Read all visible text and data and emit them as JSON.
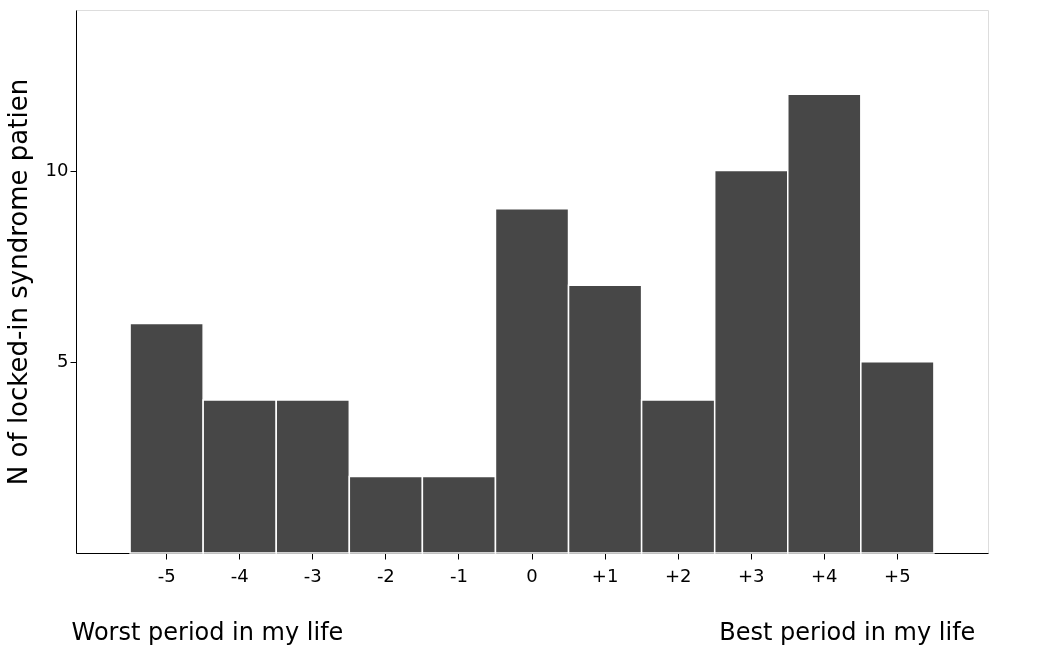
{
  "chart_data": {
    "type": "bar",
    "categories": [
      "-5",
      "-4",
      "-3",
      "-2",
      "-1",
      "0",
      "+1",
      "+2",
      "+3",
      "+4",
      "+5"
    ],
    "values": [
      6,
      4,
      4,
      2,
      2,
      9,
      7,
      4,
      10,
      12,
      5
    ],
    "color": "#474747",
    "ylabel": "N of locked-in syndrome patien",
    "ylim": [
      0,
      14.2
    ],
    "yticks": [
      5,
      10
    ],
    "grid": false,
    "annotations": [
      "Worst period in my life",
      "Best period in my life"
    ]
  }
}
